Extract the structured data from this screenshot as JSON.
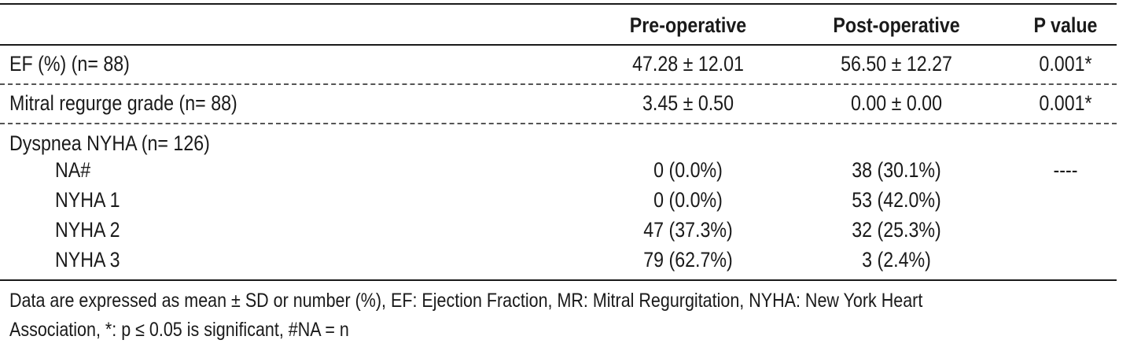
{
  "table": {
    "headers": {
      "label": "",
      "pre": "Pre-operative",
      "post": "Post-operative",
      "p": "P value"
    },
    "rows": [
      {
        "label": "EF (%) (n= 88)",
        "pre": "47.28 ± 12.01",
        "post": "56.50 ± 12.27",
        "p": "0.001*"
      },
      {
        "label": "Mitral regurge grade (n= 88)",
        "pre": "3.45 ± 0.50",
        "post": "0.00 ± 0.00",
        "p": "0.001*"
      },
      {
        "label": "Dyspnea NYHA (n= 126)"
      }
    ],
    "subrows": [
      {
        "label": "NA#",
        "pre": "0 (0.0%)",
        "post": "38 (30.1%)",
        "p": "----"
      },
      {
        "label": "NYHA 1",
        "pre": "0 (0.0%)",
        "post": "53 (42.0%)"
      },
      {
        "label": "NYHA 2",
        "pre": "47 (37.3%)",
        "post": "32 (25.3%)"
      },
      {
        "label": "NYHA 3",
        "pre": "79 (62.7%)",
        "post": "3 (2.4%)"
      }
    ]
  },
  "footnote": {
    "line1": "Data are expressed as mean ± SD or number (%), EF: Ejection Fraction, MR: Mitral Regurgitation, NYHA: New York Heart",
    "line2": "Association, *: p ≤ 0.05 is significant, #NA = n"
  }
}
